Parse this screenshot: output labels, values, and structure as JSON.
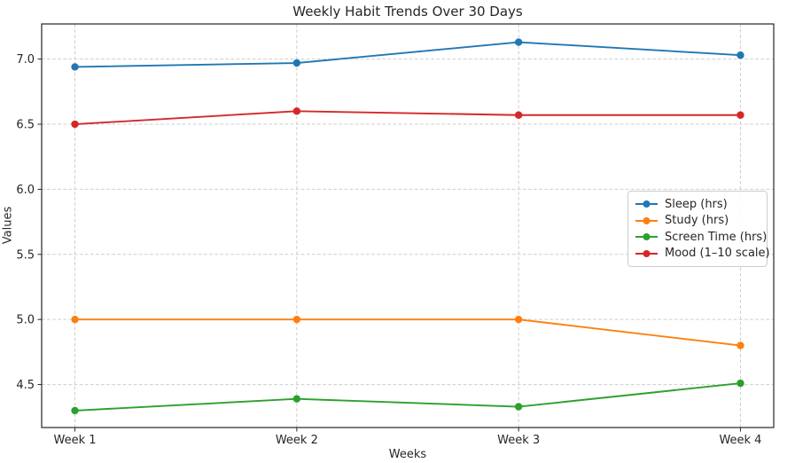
{
  "chart_data": {
    "type": "line",
    "title": "Weekly Habit Trends Over 30 Days",
    "xlabel": "Weeks",
    "ylabel": "Values",
    "categories": [
      "Week 1",
      "Week 2",
      "Week 3",
      "Week 4"
    ],
    "series": [
      {
        "name": "Sleep (hrs)",
        "color": "#1f77b4",
        "values": [
          6.94,
          6.97,
          7.13,
          7.03
        ]
      },
      {
        "name": "Study (hrs)",
        "color": "#ff7f0e",
        "values": [
          5.0,
          5.0,
          5.0,
          4.8
        ]
      },
      {
        "name": "Screen Time (hrs)",
        "color": "#2ca02c",
        "values": [
          4.3,
          4.39,
          4.33,
          4.51
        ]
      },
      {
        "name": "Mood (1–10 scale)",
        "color": "#d62728",
        "values": [
          6.5,
          6.6,
          6.57,
          6.57
        ]
      }
    ],
    "yticks": [
      4.5,
      5.0,
      5.5,
      6.0,
      6.5,
      7.0
    ],
    "ylim": [
      4.17,
      7.27
    ],
    "x_index_lim": [
      -0.15,
      3.15
    ],
    "grid": true,
    "grid_linestyle": "dashed",
    "legend_position": "center right",
    "marker": "circle"
  },
  "colors": {
    "grid": "#cdcdcd",
    "spine": "#262626",
    "text": "#262626",
    "legend_border": "#cccccc",
    "background": "#ffffff"
  }
}
